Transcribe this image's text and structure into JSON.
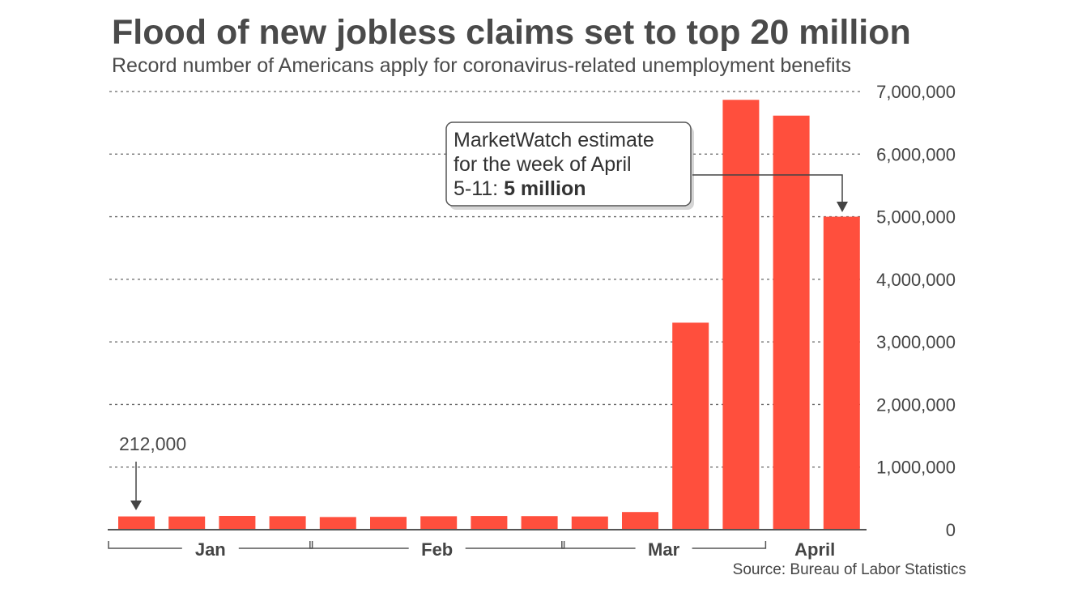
{
  "chart_data": {
    "type": "bar",
    "title": "Flood of new jobless claims set to top 20 million",
    "subtitle": "Record number of Americans apply for coronavirus-related unemployment benefits",
    "xlabel": "",
    "ylabel": "",
    "ylim": [
      0,
      7000000
    ],
    "grid": true,
    "y_ticks": [
      0,
      1000000,
      2000000,
      3000000,
      4000000,
      5000000,
      6000000,
      7000000
    ],
    "y_tick_labels": [
      "0",
      "1,000,000",
      "2,000,000",
      "3,000,000",
      "4,000,000",
      "5,000,000",
      "6,000,000",
      "7,000,000"
    ],
    "values": [
      212000,
      211000,
      220000,
      216000,
      202000,
      205000,
      215000,
      219000,
      217000,
      211000,
      282000,
      3307000,
      6867000,
      6615000,
      5000000
    ],
    "month_groups": [
      {
        "label": "Jan",
        "bars": 4
      },
      {
        "label": "Feb",
        "bars": 5
      },
      {
        "label": "Mar",
        "bars": 4
      },
      {
        "label": "April",
        "bars": 2
      }
    ],
    "bar_color": "#ff4f3d",
    "annotations": {
      "first_value_label": "212,000",
      "estimate_line1": "MarketWatch estimate",
      "estimate_line2": "for the week of April",
      "estimate_line3_prefix": "5-11: ",
      "estimate_line3_bold": "5 million"
    },
    "source": "Source: Bureau of Labor Statistics"
  }
}
